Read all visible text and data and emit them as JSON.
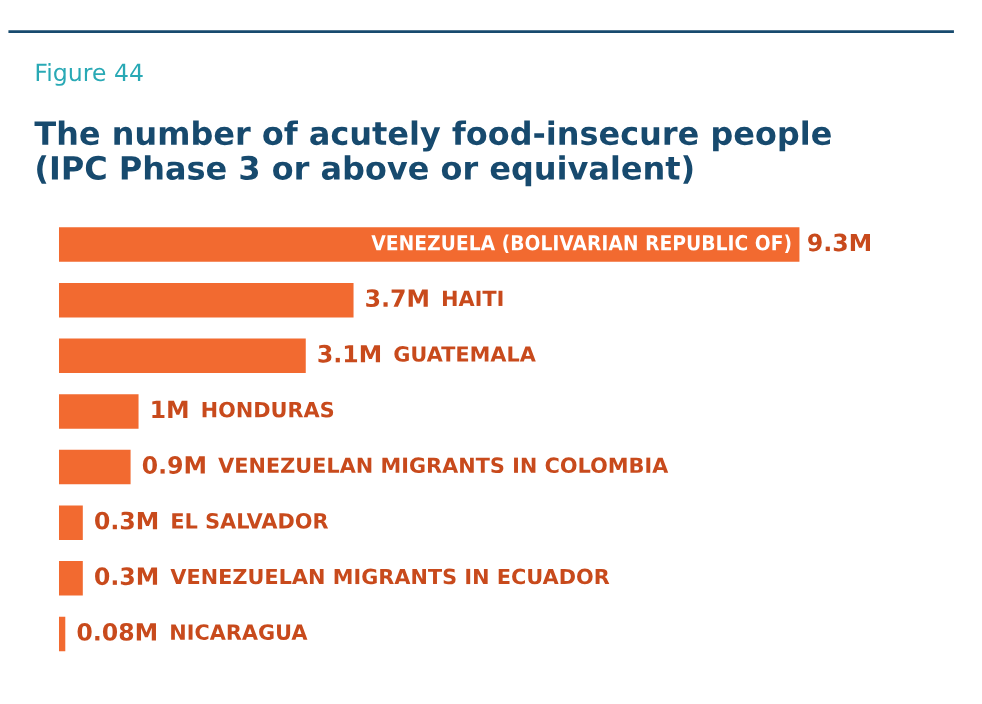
{
  "chart_data": {
    "type": "bar",
    "orientation": "horizontal",
    "title": "The number of acutely food-insecure people\n(IPC Phase 3 or above or equivalent)",
    "annotations": [
      "Figure 44"
    ],
    "categories": [
      "VENEZUELA (BOLIVARIAN REPUBLIC OF)",
      "HAITI",
      "GUATEMALA",
      "HONDURAS",
      "VENEZUELAN MIGRANTS IN COLOMBIA",
      "EL SALVADOR",
      "VENEZUELAN MIGRANTS IN ECUADOR",
      "NICARAGUA"
    ],
    "values": [
      9.3,
      3.7,
      3.1,
      1,
      0.9,
      0.3,
      0.3,
      0.08
    ],
    "value_labels": [
      "9.3M",
      "3.7M",
      "3.1M",
      "1M",
      "0.9M",
      "0.3M",
      "0.3M",
      "0.08M"
    ],
    "color": "#f26a30",
    "tick_labels": false
  }
}
